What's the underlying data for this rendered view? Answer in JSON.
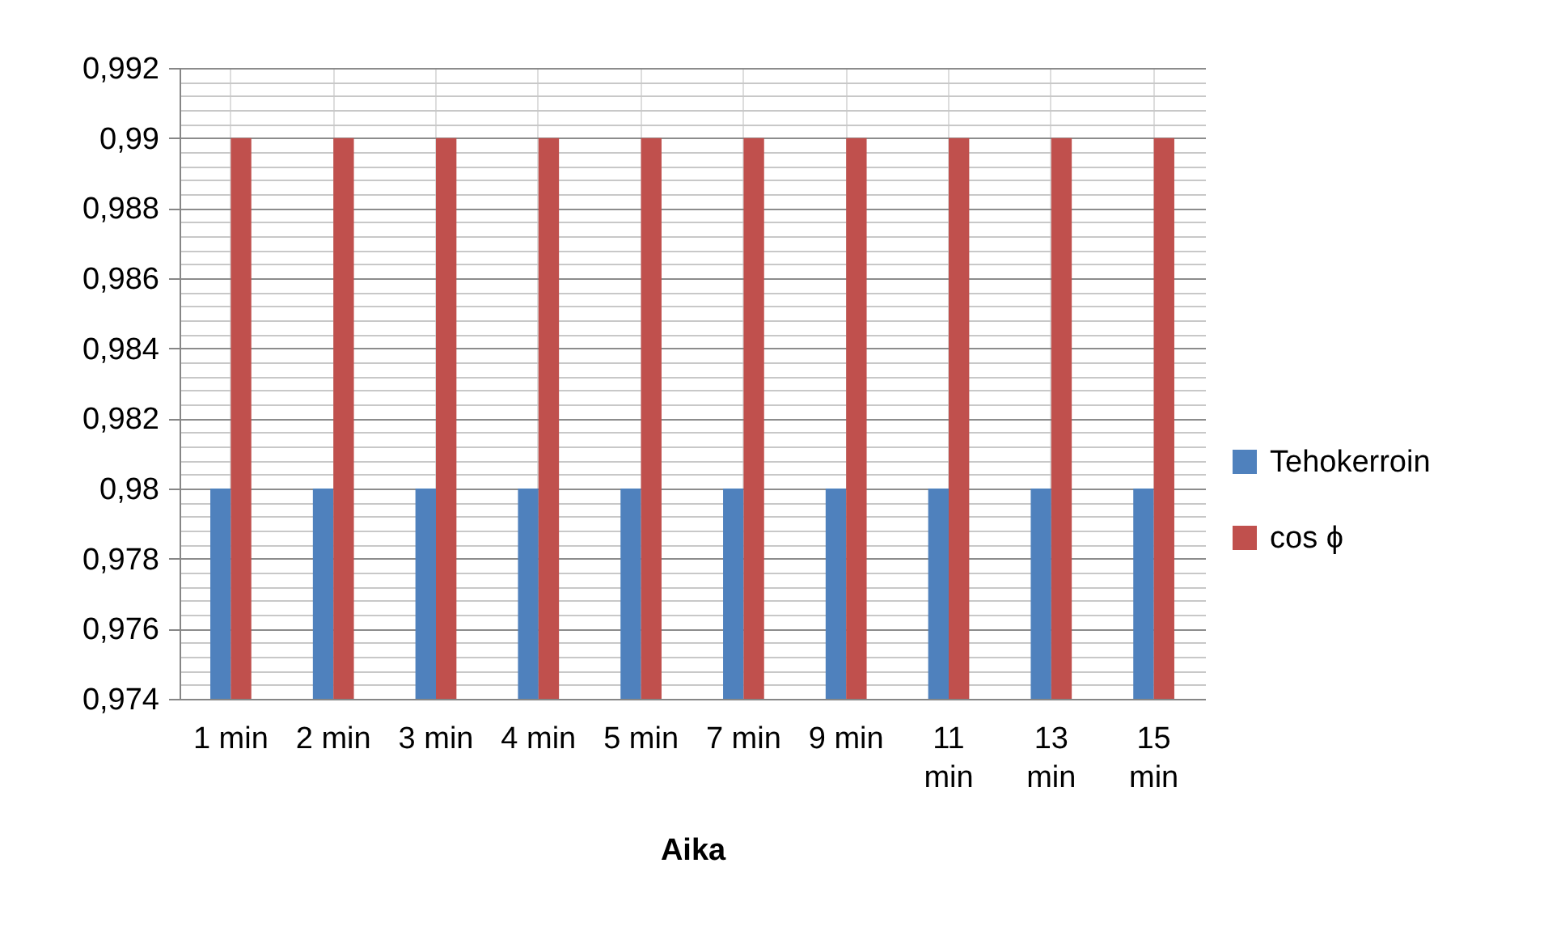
{
  "chart_data": {
    "type": "bar",
    "xlabel": "Aika",
    "categories": [
      "1 min",
      "2 min",
      "3 min",
      "4 min",
      "5 min",
      "7 min",
      "9 min",
      "11 min",
      "13 min",
      "15 min"
    ],
    "series": [
      {
        "name": "Tehokerroin",
        "color": "#4f81bd",
        "values": [
          0.98,
          0.98,
          0.98,
          0.98,
          0.98,
          0.98,
          0.98,
          0.98,
          0.98,
          0.98
        ]
      },
      {
        "name": "cos ϕ",
        "color": "#c0504d",
        "values": [
          0.99,
          0.99,
          0.99,
          0.99,
          0.99,
          0.99,
          0.99,
          0.99,
          0.99,
          0.99
        ]
      }
    ],
    "ylim": [
      0.974,
      0.992
    ],
    "yticks": [
      {
        "value": 0.974,
        "label": "0,974"
      },
      {
        "value": 0.9744,
        "label": null
      },
      {
        "value": 0.9748,
        "label": null
      },
      {
        "value": 0.9752,
        "label": null
      },
      {
        "value": 0.9756,
        "label": null
      },
      {
        "value": 0.976,
        "label": "0,976"
      },
      {
        "value": 0.9764,
        "label": null
      },
      {
        "value": 0.9768,
        "label": null
      },
      {
        "value": 0.9772,
        "label": null
      },
      {
        "value": 0.9776,
        "label": null
      },
      {
        "value": 0.978,
        "label": "0,978"
      },
      {
        "value": 0.9784,
        "label": null
      },
      {
        "value": 0.9788,
        "label": null
      },
      {
        "value": 0.9792,
        "label": null
      },
      {
        "value": 0.9796,
        "label": null
      },
      {
        "value": 0.98,
        "label": "0,98"
      },
      {
        "value": 0.9804,
        "label": null
      },
      {
        "value": 0.9808,
        "label": null
      },
      {
        "value": 0.9812,
        "label": null
      },
      {
        "value": 0.9816,
        "label": null
      },
      {
        "value": 0.982,
        "label": "0,982"
      },
      {
        "value": 0.9824,
        "label": null
      },
      {
        "value": 0.9828,
        "label": null
      },
      {
        "value": 0.9832,
        "label": null
      },
      {
        "value": 0.9836,
        "label": null
      },
      {
        "value": 0.984,
        "label": "0,984"
      },
      {
        "value": 0.9844,
        "label": null
      },
      {
        "value": 0.9848,
        "label": null
      },
      {
        "value": 0.9852,
        "label": null
      },
      {
        "value": 0.9856,
        "label": null
      },
      {
        "value": 0.986,
        "label": "0,986"
      },
      {
        "value": 0.9864,
        "label": null
      },
      {
        "value": 0.9868,
        "label": null
      },
      {
        "value": 0.9872,
        "label": null
      },
      {
        "value": 0.9876,
        "label": null
      },
      {
        "value": 0.988,
        "label": "0,988"
      },
      {
        "value": 0.9884,
        "label": null
      },
      {
        "value": 0.9888,
        "label": null
      },
      {
        "value": 0.9892,
        "label": null
      },
      {
        "value": 0.9896,
        "label": null
      },
      {
        "value": 0.99,
        "label": "0,99"
      },
      {
        "value": 0.9904,
        "label": null
      },
      {
        "value": 0.9908,
        "label": null
      },
      {
        "value": 0.9912,
        "label": null
      },
      {
        "value": 0.9916,
        "label": null
      },
      {
        "value": 0.992,
        "label": "0,992"
      }
    ],
    "grid": true,
    "legend": "right"
  }
}
